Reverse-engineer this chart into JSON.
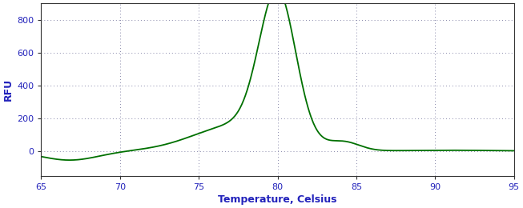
{
  "xlabel": "Temperature, Celsius",
  "ylabel": "RFU",
  "xlim": [
    65,
    95
  ],
  "ylim": [
    -150,
    900
  ],
  "xticks": [
    65,
    70,
    75,
    80,
    85,
    90,
    95
  ],
  "yticks": [
    0,
    200,
    400,
    600,
    800
  ],
  "line_color": "#007000",
  "line_width": 1.3,
  "grid_color": "#8888aa",
  "grid_linestyle": ":",
  "grid_linewidth": 0.7,
  "background_color": "#ffffff",
  "xlabel_fontsize": 9,
  "ylabel_fontsize": 9,
  "tick_fontsize": 8,
  "tick_color": "#2222bb",
  "label_color": "#2222bb",
  "figsize": [
    6.53,
    2.6
  ],
  "dpi": 100
}
